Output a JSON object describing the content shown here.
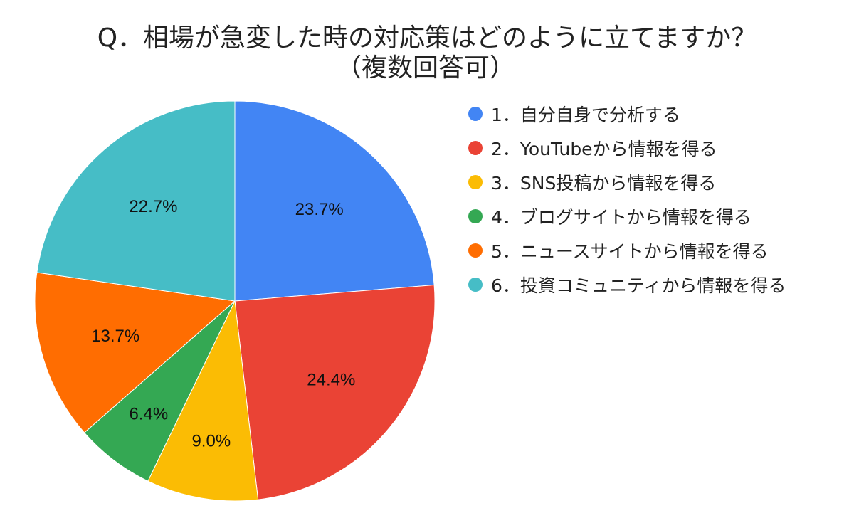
{
  "title_line1": "Q．相場が急変した時の対応策はどのように立てますか？",
  "title_line2": "（複数回答可）",
  "chart_data": {
    "type": "pie",
    "title": "Q．相場が急変した時の対応策はどのように立てますか？（複数回答可）",
    "start_angle": "12 o'clock",
    "direction": "clockwise",
    "legend_position": "right",
    "slices": [
      {
        "label": "1．自分自身で分析する",
        "value": 23.7,
        "value_label": "23.7%",
        "color": "#4285f4"
      },
      {
        "label": "2．YouTubeから情報を得る",
        "value": 24.4,
        "value_label": "24.4%",
        "color": "#ea4335"
      },
      {
        "label": "3．SNS投稿から情報を得る",
        "value": 9.0,
        "value_label": "9.0%",
        "color": "#fbbc04"
      },
      {
        "label": "4．ブログサイトから情報を得る",
        "value": 6.4,
        "value_label": "6.4%",
        "color": "#34a853"
      },
      {
        "label": "5．ニュースサイトから情報を得る",
        "value": 13.7,
        "value_label": "13.7%",
        "color": "#ff6d01"
      },
      {
        "label": "6．投資コミュニティから情報を得る",
        "value": 22.7,
        "value_label": "22.7%",
        "color": "#46bdc6"
      }
    ]
  }
}
